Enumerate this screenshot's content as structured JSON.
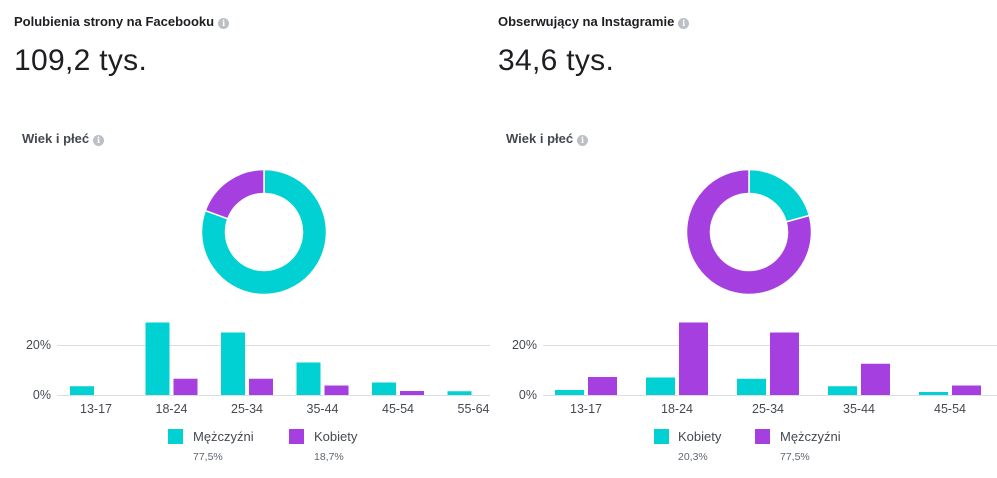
{
  "panels": [
    {
      "metric_title": "Polubienia strony na Facebooku",
      "metric_value": "109,2 tys.",
      "section_title": "Wiek i płeć"
    },
    {
      "metric_title": "Obserwujący na Instagramie",
      "metric_value": "34,6 tys.",
      "section_title": "Wiek i płeć"
    }
  ],
  "colors": {
    "teal": "#01d1d2",
    "purple": "#a63fe0",
    "grid": "#dadde1"
  },
  "icons": {
    "info": "info-icon"
  },
  "chart_data": [
    {
      "type": "bar",
      "donut": {
        "slices": [
          {
            "name": "Mężczyźni",
            "value": 77.5,
            "color": "#01d1d2"
          },
          {
            "name": "Kobiety",
            "value": 18.7,
            "color": "#a63fe0"
          }
        ]
      },
      "categories": [
        "13-17",
        "18-24",
        "25-34",
        "35-44",
        "45-54",
        "55-64"
      ],
      "series": [
        {
          "name": "Mężczyźni",
          "pct_label": "77,5%",
          "color": "#01d1d2",
          "values": [
            3.5,
            29,
            25,
            13,
            5,
            1.5
          ]
        },
        {
          "name": "Kobiety",
          "pct_label": "18,7%",
          "color": "#a63fe0",
          "values": [
            0,
            6.5,
            6.5,
            3.8,
            1.6,
            0
          ]
        }
      ],
      "yticks": [
        "0%",
        "20%"
      ],
      "ylim": [
        0,
        30
      ],
      "grid": true,
      "legend": "bottom"
    },
    {
      "type": "bar",
      "donut": {
        "slices": [
          {
            "name": "Kobiety",
            "value": 20.3,
            "color": "#01d1d2"
          },
          {
            "name": "Mężczyźni",
            "value": 77.5,
            "color": "#a63fe0"
          }
        ]
      },
      "categories": [
        "13-17",
        "18-24",
        "25-34",
        "35-44",
        "45-54"
      ],
      "series": [
        {
          "name": "Kobiety",
          "pct_label": "20,3%",
          "color": "#01d1d2",
          "values": [
            2,
            7,
            6.5,
            3.5,
            1.2
          ]
        },
        {
          "name": "Mężczyźni",
          "pct_label": "77,5%",
          "color": "#a63fe0",
          "values": [
            7.2,
            29,
            25,
            12.5,
            3.8
          ]
        }
      ],
      "yticks": [
        "0%",
        "20%"
      ],
      "ylim": [
        0,
        30
      ],
      "grid": true,
      "legend": "bottom"
    }
  ]
}
